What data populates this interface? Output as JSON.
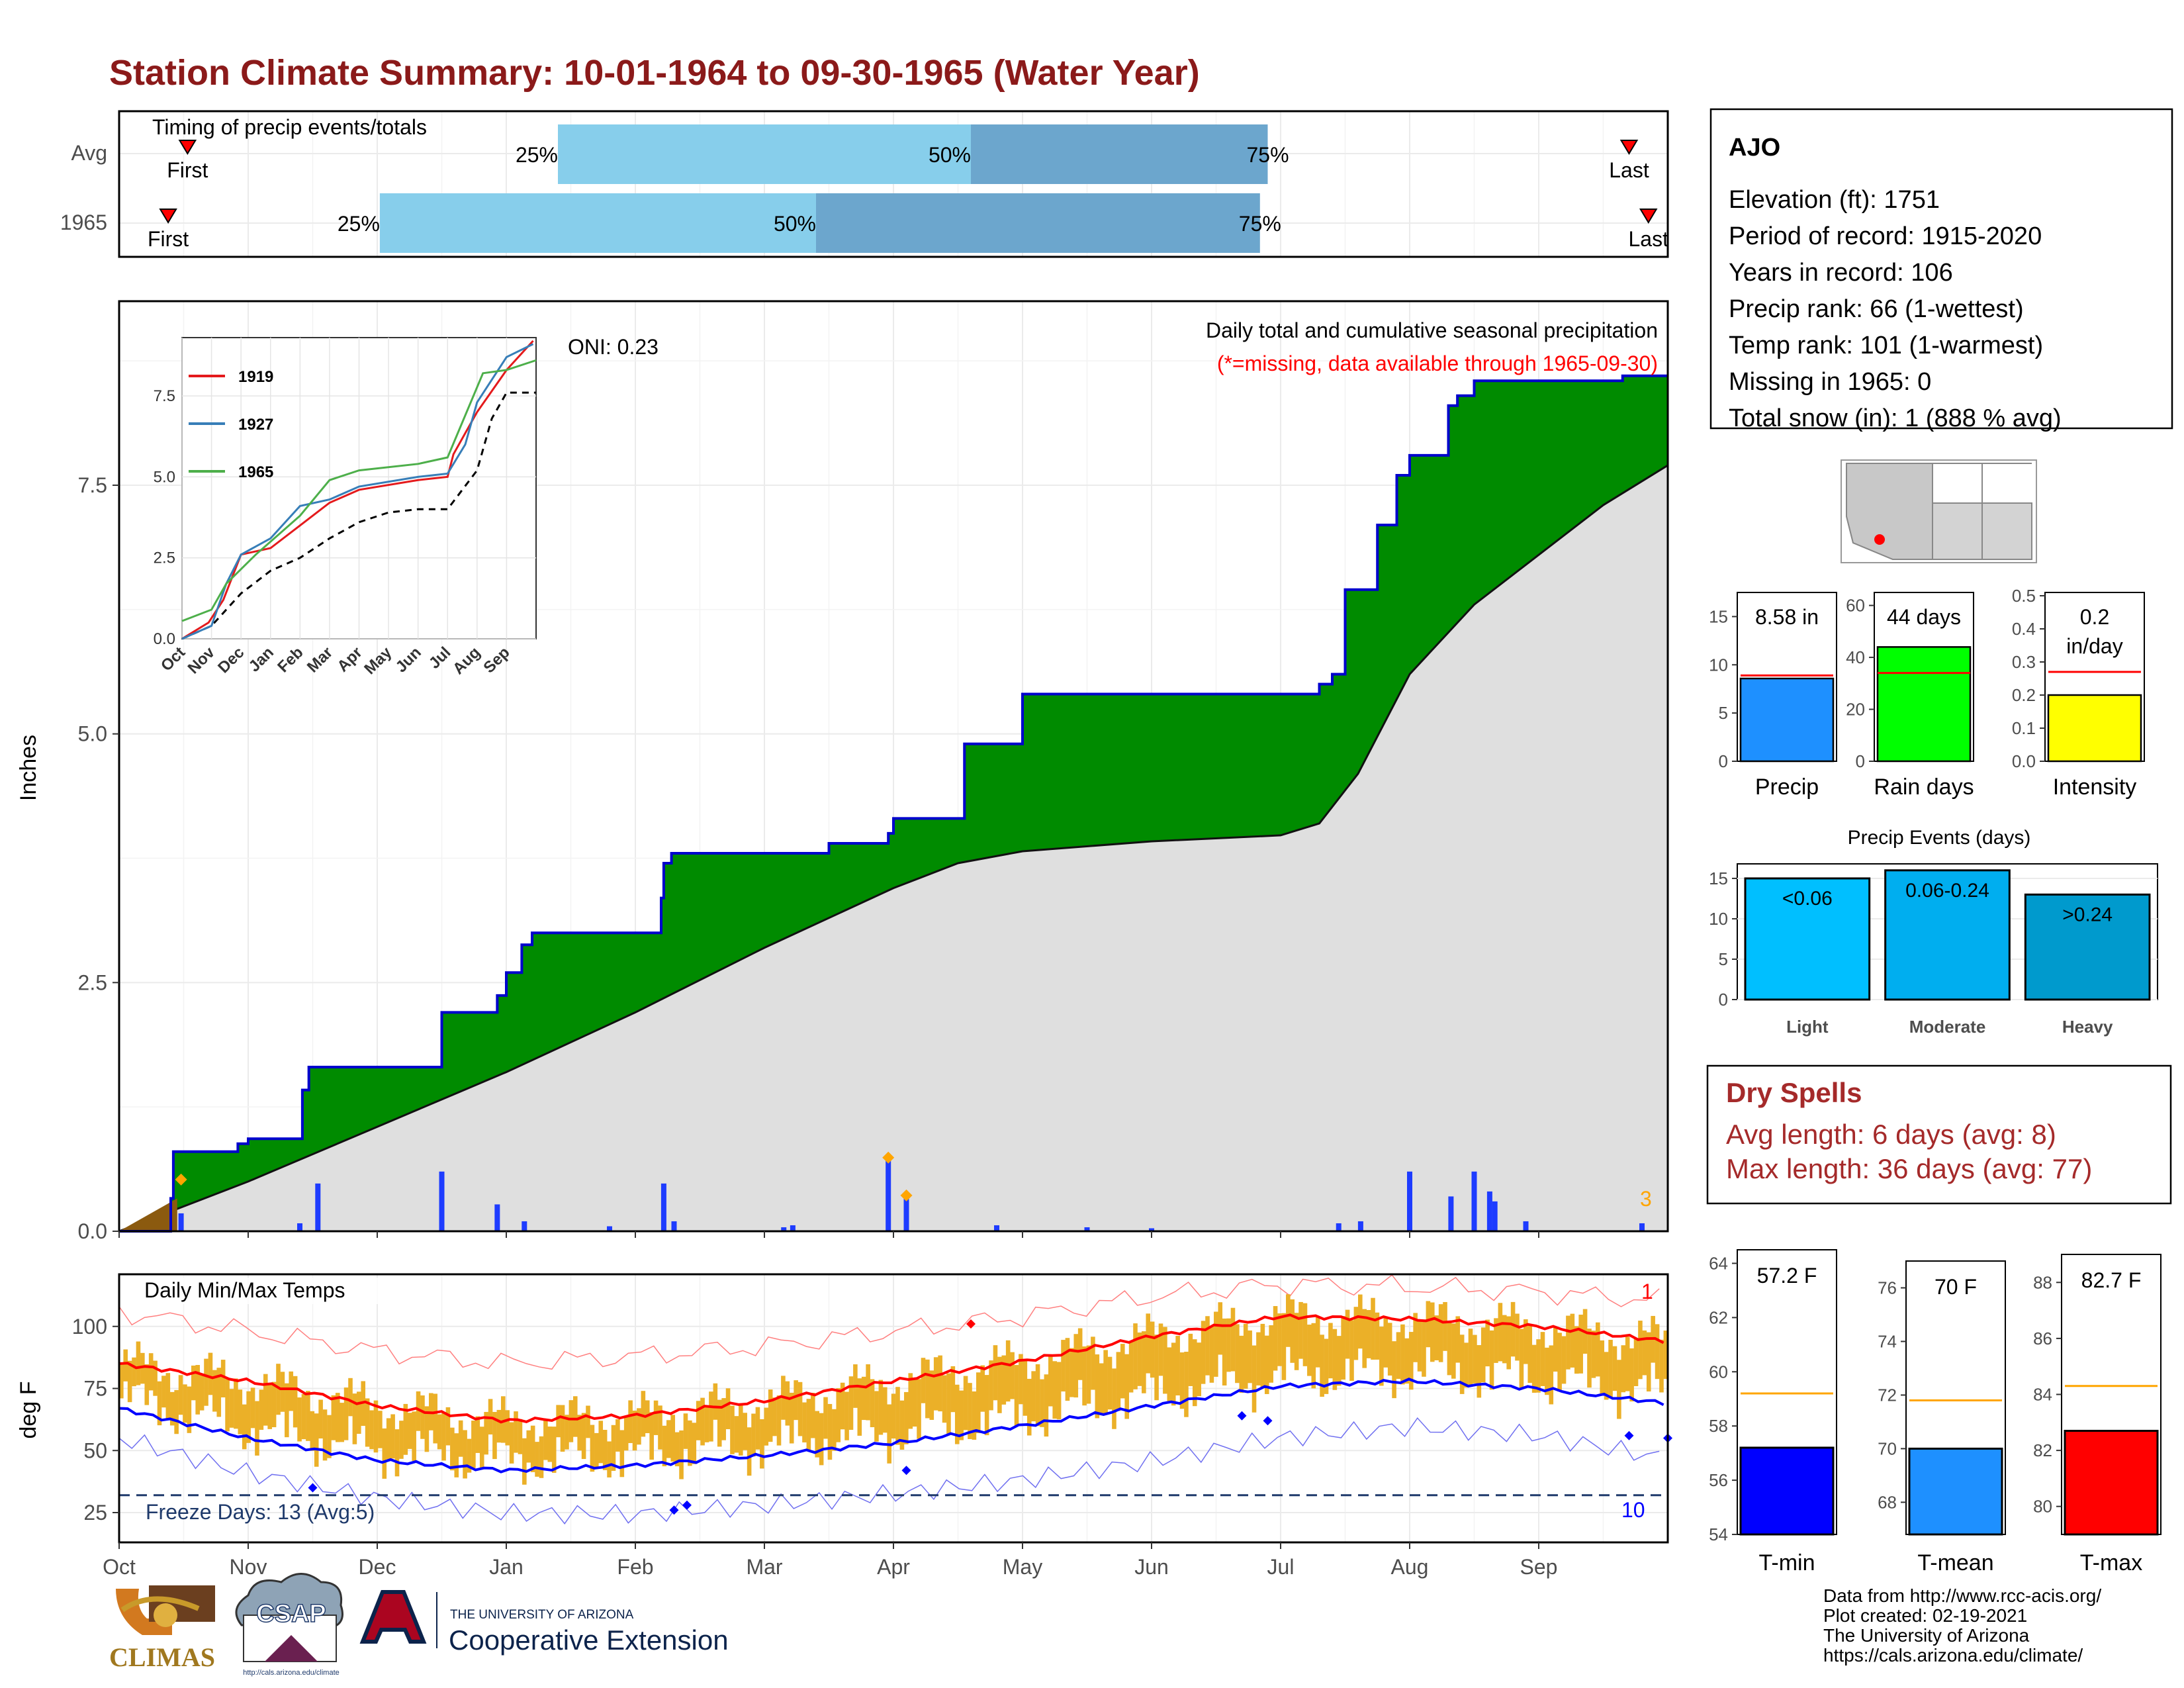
{
  "page": {
    "title": "Station Climate Summary: 10-01-1964 to 09-30-1965 (Water Year)"
  },
  "colors": {
    "title": "#8B1A1A",
    "light_blue": "#87CEEB",
    "mid_blue": "#6CA6CD",
    "green": "#008B00",
    "climo_gray": "#DFDFDF",
    "precip_bar": "#1E3CFF",
    "temp_bar": "#EBB028",
    "tmax_line": "#FF0000",
    "tmin_line": "#0000FF",
    "dry_red": "#A52A2A"
  },
  "timing": {
    "label": "Timing of precip events/totals",
    "rows": [
      {
        "name": "Avg",
        "first_label": "First",
        "last_label": "Last",
        "first": 0.53,
        "p25": 3.4,
        "p50": 6.6,
        "p75": 8.9,
        "last": 11.7
      },
      {
        "name": "1965",
        "first_label": "First",
        "last_label": "Last",
        "first": 0.38,
        "p25": 2.02,
        "p50": 5.4,
        "p75": 8.84,
        "last": 11.85
      }
    ],
    "pct_labels": [
      "25%",
      "50%",
      "75%"
    ]
  },
  "months": [
    "Oct",
    "Nov",
    "Dec",
    "Jan",
    "Feb",
    "Mar",
    "Apr",
    "May",
    "Jun",
    "Jul",
    "Aug",
    "Sep"
  ],
  "precip_panel": {
    "ylabel": "Inches",
    "oni": "ONI: 0.23",
    "subtitle": "Daily total and cumulative seasonal precipitation",
    "missing_note": "(*=missing, data available through 1965-09-30)",
    "corner_count": "3",
    "yticks": [
      0.0,
      2.5,
      5.0,
      7.5
    ],
    "ytick_labels": [
      "0.0",
      "2.5",
      "5.0",
      "7.5"
    ],
    "ylim": [
      0,
      9.35
    ]
  },
  "inset": {
    "legend": [
      "1919",
      "1927",
      "1965"
    ],
    "yticks": [
      "0.0",
      "2.5",
      "5.0",
      "7.5"
    ],
    "xticks": [
      "Oct",
      "Nov",
      "Dec",
      "Jan",
      "Feb",
      "Mar",
      "Apr",
      "May",
      "Jun",
      "Jul",
      "Aug",
      "Sep"
    ]
  },
  "temp_panel": {
    "ylabel": "deg F",
    "label": "Daily Min/Max Temps",
    "freeze": "Freeze Days: 13 (Avg:5)",
    "top_count": "1",
    "bottom_count": "10",
    "yticks": [
      "25",
      "50",
      "75",
      "100"
    ]
  },
  "station": {
    "name": "AJO",
    "lines": [
      "Elevation (ft): 1751",
      "Period of record: 1915-2020",
      "Years in record: 106",
      "Precip rank: 66 (1-wettest)",
      "Temp rank: 101 (1-warmest)",
      "Missing in 1965: 0",
      "Total snow (in): 1 (888 % avg)"
    ]
  },
  "summary_bars": [
    {
      "label": "Precip",
      "value_text": "8.58 in",
      "value": 8.58,
      "avg": 8.9,
      "ymax": 17.5,
      "ticks": [
        "0",
        "5",
        "10",
        "15"
      ],
      "tickvals": [
        0,
        5,
        10,
        15
      ],
      "color": "#1E90FF"
    },
    {
      "label": "Rain days",
      "value_text": "44 days",
      "value": 44,
      "avg": 34,
      "ymax": 65,
      "ticks": [
        "0",
        "20",
        "40",
        "60"
      ],
      "tickvals": [
        0,
        20,
        40,
        60
      ],
      "color": "#00FF00"
    },
    {
      "label": "Intensity",
      "value_text": "0.2",
      "value_text2": "in/day",
      "value": 0.2,
      "avg": 0.27,
      "ymax": 0.51,
      "ticks": [
        "0.0",
        "0.1",
        "0.2",
        "0.3",
        "0.4",
        "0.5"
      ],
      "tickvals": [
        0,
        0.1,
        0.2,
        0.3,
        0.4,
        0.5
      ],
      "color": "#FFFF00"
    }
  ],
  "precip_events": {
    "title": "Precip Events (days)",
    "categories": [
      "Light",
      "Moderate",
      "Heavy"
    ],
    "bin_labels": [
      "<0.06",
      "0.06-0.24",
      ">0.24"
    ],
    "values": [
      15,
      16,
      13
    ],
    "colors": [
      "#00BFFF",
      "#00AEEF",
      "#009ACD"
    ],
    "yticks": [
      "0",
      "5",
      "10",
      "15"
    ]
  },
  "dry_spells": {
    "title": "Dry Spells",
    "avg_length": "Avg length: 6 days (avg: 8)",
    "max_length": "Max length: 36 days (avg: 77)"
  },
  "temp_summary": [
    {
      "label": "T-min",
      "value_text": "57.2 F",
      "value": 57.2,
      "avg": 59.2,
      "ymin": 54,
      "ymax": 64.5,
      "ticks": [
        "54",
        "56",
        "58",
        "60",
        "62",
        "64"
      ],
      "tickvals": [
        54,
        56,
        58,
        60,
        62,
        64
      ],
      "color": "#0000FF"
    },
    {
      "label": "T-mean",
      "value_text": "70 F",
      "value": 70,
      "avg": 71.8,
      "ymin": 66.8,
      "ymax": 77,
      "ticks": [
        "68",
        "70",
        "72",
        "74",
        "76"
      ],
      "tickvals": [
        68,
        70,
        72,
        74,
        76
      ],
      "color": "#1E90FF"
    },
    {
      "label": "T-max",
      "value_text": "82.7 F",
      "value": 82.7,
      "avg": 84.3,
      "ymin": 79,
      "ymax": 89,
      "ticks": [
        "80",
        "82",
        "84",
        "86",
        "88"
      ],
      "tickvals": [
        80,
        82,
        84,
        86,
        88
      ],
      "color": "#FF0000"
    }
  ],
  "footer": {
    "lines": [
      "Data from http://www.rcc-acis.org/",
      "Plot created: 02-19-2021",
      "The University of Arizona",
      "https://cals.arizona.edu/climate/"
    ],
    "climas": "CLIMAS",
    "csap": "CSAP",
    "csap_url": "http://cals.arizona.edu/climate",
    "ua_small": "THE UNIVERSITY OF ARIZONA",
    "ua_big": "Cooperative Extension"
  },
  "chart_data": {
    "type": "area",
    "x_unit": "month index from Oct 1 (0-12)",
    "cumulative_1965": {
      "x": [
        0,
        0.4,
        0.42,
        0.92,
        1.0,
        1.42,
        1.47,
        2.5,
        2.5,
        2.93,
        3.0,
        3.12,
        3.2,
        3.7,
        4.2,
        4.22,
        4.28,
        5.3,
        5.5,
        5.96,
        6.0,
        6.5,
        6.55,
        7.0,
        8.8,
        9.3,
        9.4,
        9.5,
        9.75,
        9.9,
        10.0,
        10.3,
        10.37,
        10.5,
        11.0,
        11.6,
        11.65,
        12.0
      ],
      "y": [
        0.0,
        0.33,
        0.8,
        0.88,
        0.93,
        1.42,
        1.65,
        1.65,
        2.2,
        2.37,
        2.6,
        2.88,
        3.0,
        3.0,
        3.35,
        3.7,
        3.8,
        3.8,
        3.9,
        4.0,
        4.15,
        4.15,
        4.9,
        5.4,
        5.4,
        5.5,
        5.6,
        6.45,
        7.1,
        7.6,
        7.8,
        8.3,
        8.4,
        8.55,
        8.55,
        8.55,
        8.6,
        8.6
      ]
    },
    "climatology": {
      "x": [
        0,
        1,
        2,
        3,
        4,
        5,
        6,
        6.5,
        7,
        8,
        9,
        9.3,
        9.6,
        10,
        10.5,
        11,
        11.5,
        12
      ],
      "y": [
        0.0,
        0.5,
        1.05,
        1.6,
        2.2,
        2.85,
        3.45,
        3.7,
        3.82,
        3.92,
        3.98,
        4.1,
        4.6,
        5.6,
        6.3,
        6.8,
        7.3,
        7.7
      ]
    },
    "daily_precip": {
      "x": [
        0.48,
        1.4,
        1.54,
        2.5,
        2.93,
        3.14,
        3.8,
        4.22,
        4.3,
        5.15,
        5.22,
        5.96,
        6.1,
        6.8,
        7.5,
        8.0,
        9.45,
        9.62,
        10.0,
        10.32,
        10.5,
        10.62,
        10.66,
        10.9,
        11.8
      ],
      "y": [
        0.18,
        0.08,
        0.48,
        0.6,
        0.27,
        0.1,
        0.05,
        0.48,
        0.1,
        0.04,
        0.06,
        0.75,
        0.35,
        0.06,
        0.04,
        0.03,
        0.08,
        0.1,
        0.6,
        0.35,
        0.6,
        0.4,
        0.3,
        0.1,
        0.08
      ]
    },
    "temp": {
      "avg_tmax": {
        "x": [
          0,
          1,
          2,
          3,
          4,
          5,
          6,
          7,
          8,
          9,
          10,
          11,
          12
        ],
        "y": [
          85,
          78,
          68,
          62,
          64,
          70,
          78,
          86,
          96,
          104,
          103,
          100,
          94
        ]
      },
      "avg_tmin": {
        "x": [
          0,
          1,
          2,
          3,
          4,
          5,
          6,
          7,
          8,
          9,
          10,
          11,
          12
        ],
        "y": [
          67,
          55,
          46,
          42,
          44,
          48,
          53,
          60,
          68,
          76,
          78,
          75,
          69
        ]
      },
      "record_high": {
        "x": [
          0,
          1,
          2,
          3,
          4,
          5,
          6,
          7,
          8,
          9,
          10,
          11,
          12
        ],
        "y": [
          106,
          98,
          90,
          85,
          88,
          92,
          98,
          104,
          112,
          117,
          116,
          114,
          110
        ]
      },
      "record_low": {
        "x": [
          0,
          1,
          2,
          3,
          4,
          5,
          6,
          7,
          8,
          9,
          10,
          11,
          12
        ],
        "y": [
          52,
          38,
          28,
          22,
          22,
          26,
          31,
          37,
          45,
          55,
          60,
          57,
          48
        ]
      },
      "freeze_line": 32
    }
  }
}
